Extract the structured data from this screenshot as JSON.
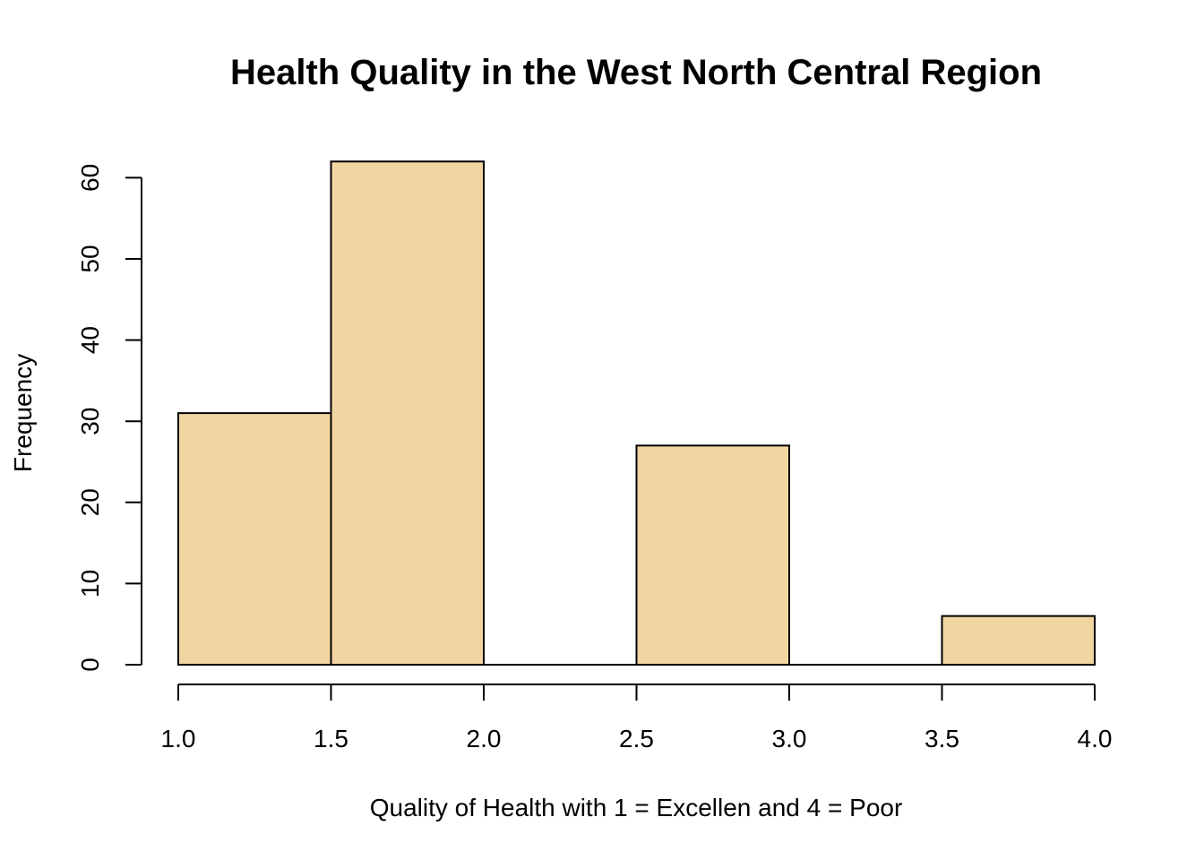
{
  "chart_data": {
    "type": "histogram",
    "title": "Health Quality in the West North Central Region",
    "xlabel": "Quality of Health with 1 = Excellen and 4 = Poor",
    "ylabel": "Frequency",
    "bins": [
      {
        "start": 1.0,
        "end": 1.5,
        "value": 31
      },
      {
        "start": 1.5,
        "end": 2.0,
        "value": 62
      },
      {
        "start": 2.0,
        "end": 2.5,
        "value": 0
      },
      {
        "start": 2.5,
        "end": 3.0,
        "value": 27
      },
      {
        "start": 3.0,
        "end": 3.5,
        "value": 0
      },
      {
        "start": 3.5,
        "end": 4.0,
        "value": 6
      }
    ],
    "xlim": [
      1.0,
      4.0
    ],
    "ylim": [
      0,
      62
    ],
    "x_ticks": [
      "1.0",
      "1.5",
      "2.0",
      "2.5",
      "3.0",
      "3.5",
      "4.0"
    ],
    "y_ticks": [
      "0",
      "10",
      "20",
      "30",
      "40",
      "50",
      "60"
    ],
    "bar_color": "#f2d6a2",
    "grid": false,
    "legend": "none"
  }
}
